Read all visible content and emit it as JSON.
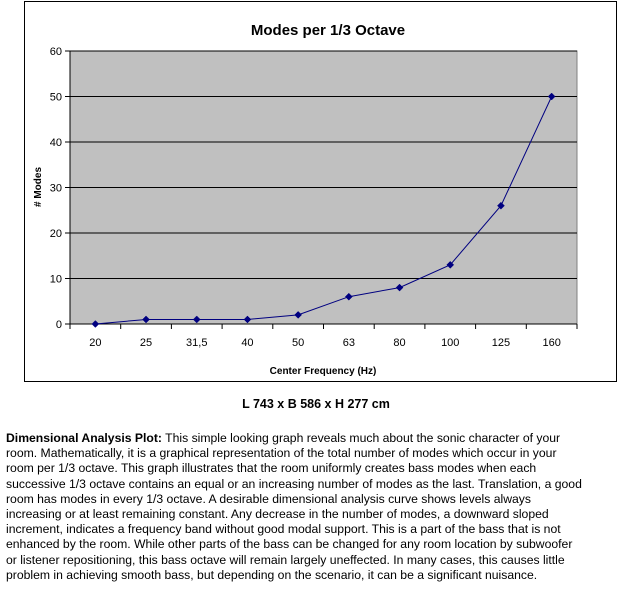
{
  "chart_data": {
    "type": "line",
    "title": "Modes per 1/3 Octave",
    "xlabel": "Center Frequency (Hz)",
    "ylabel": "# Modes",
    "categories": [
      "20",
      "25",
      "31,5",
      "40",
      "50",
      "63",
      "80",
      "100",
      "125",
      "160"
    ],
    "values": [
      0,
      1,
      1,
      1,
      2,
      6,
      8,
      13,
      26,
      50
    ],
    "ylim": [
      0,
      60
    ],
    "yticks": [
      "0",
      "10",
      "20",
      "30",
      "40",
      "50",
      "60"
    ],
    "grid": true,
    "legend": "none",
    "plot_background": "#c0c0c0",
    "line_color": "#000080"
  },
  "dimensions_text": "L 743 x B 586 x H 277 cm",
  "description": {
    "lead": "Dimensional Analysis Plot:",
    "lines": [
      "  This simple looking graph reveals much about the sonic character of your",
      "room.  Mathematically, it is a graphical representation of the total number of modes which occur in your",
      "room per 1/3 octave.  This graph illustrates that the room  uniformly creates bass modes when each",
      "successive 1/3 octave contains an equal or an increasing number of modes as the last.  Translation, a good",
      "room has modes in every 1/3 octave.  A desirable dimensional analysis curve shows levels always",
      "increasing or at least remaining constant.  Any decrease in the number of modes, a downward sloped",
      "increment, indicates a frequency band without good modal support.  This is a part of the bass that is not",
      "enhanced by the room.   While other parts of the bass can be changed for any room location by subwoofer",
      "or listener repositioning, this bass octave will remain largely uneffected.  In many cases, this causes little",
      "problem in achieving smooth bass, but depending on the scenario, it can be a significant nuisance."
    ]
  }
}
